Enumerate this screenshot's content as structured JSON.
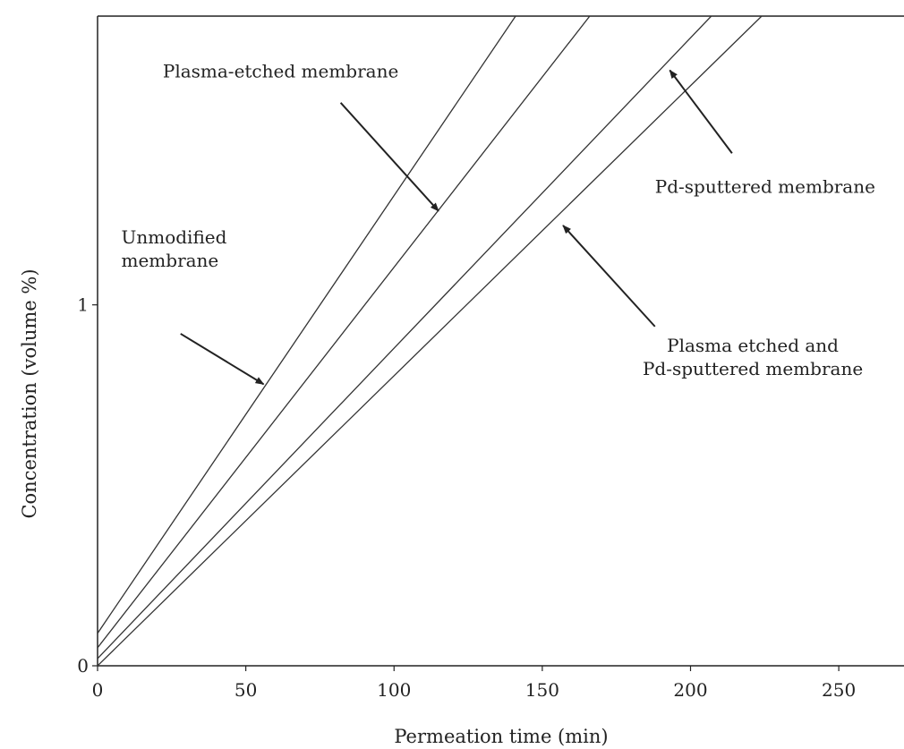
{
  "chart_data": {
    "type": "line",
    "title": "",
    "xlabel": "Permeation time (min)",
    "ylabel": "Concentration (volume %)",
    "xlim": [
      0,
      272
    ],
    "ylim": [
      0,
      1.8
    ],
    "xticks": [
      0,
      50,
      100,
      150,
      200,
      250
    ],
    "xtick_labels": [
      "0",
      "50",
      "100",
      "150",
      "200",
      "250"
    ],
    "yticks": [
      0,
      1
    ],
    "ytick_labels": [
      "0",
      "1"
    ],
    "grid": false,
    "series": [
      {
        "name": "Unmodified membrane",
        "x": [
          0,
          141
        ],
        "y": [
          0.09,
          1.8
        ]
      },
      {
        "name": "Plasma-etched membrane",
        "x": [
          0,
          166
        ],
        "y": [
          0.05,
          1.8
        ]
      },
      {
        "name": "Pd-sputtered membrane",
        "x": [
          0,
          207
        ],
        "y": [
          0.02,
          1.8
        ]
      },
      {
        "name": "Plasma etched and Pd-sputtered membrane",
        "x": [
          0,
          224
        ],
        "y": [
          0.0,
          1.8
        ]
      }
    ],
    "annotations": [
      {
        "lines": [
          "Unmodified",
          "membrane"
        ],
        "text_pos": [
          8,
          1.17
        ],
        "align": "start",
        "arrow_from": [
          28,
          0.92
        ],
        "arrow_to": [
          56,
          0.78
        ]
      },
      {
        "lines": [
          "Plasma-etched membrane"
        ],
        "text_pos": [
          22,
          1.63
        ],
        "align": "start",
        "arrow_from": [
          82,
          1.56
        ],
        "arrow_to": [
          115,
          1.26
        ]
      },
      {
        "lines": [
          "Pd-sputtered membrane"
        ],
        "text_pos": [
          188,
          1.31
        ],
        "align": "start",
        "arrow_from": [
          214,
          1.42
        ],
        "arrow_to": [
          193,
          1.65
        ]
      },
      {
        "lines": [
          "Plasma etched and",
          "Pd-sputtered membrane"
        ],
        "text_pos": [
          221,
          0.87
        ],
        "align": "middle",
        "arrow_from": [
          188,
          0.94
        ],
        "arrow_to": [
          157,
          1.22
        ]
      }
    ]
  }
}
